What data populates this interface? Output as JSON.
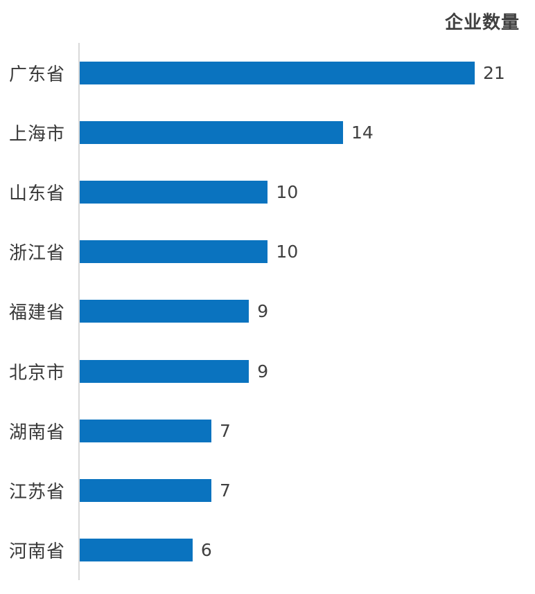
{
  "chart_data": {
    "type": "bar",
    "orientation": "horizontal",
    "title": "企业数量",
    "categories": [
      "广东省",
      "上海市",
      "山东省",
      "浙江省",
      "福建省",
      "北京市",
      "湖南省",
      "江苏省",
      "河南省"
    ],
    "values": [
      21,
      14,
      10,
      10,
      9,
      9,
      7,
      7,
      6
    ],
    "value_labels": [
      "21",
      "14",
      "10",
      "10",
      "9",
      "9",
      "7",
      "7",
      "6"
    ],
    "xlim": [
      0,
      21
    ],
    "grid": false,
    "legend_position": "none",
    "bar_color": "#0a73bf",
    "axis_line_color": "#d9d9d9",
    "category_label_color": "#383838",
    "value_label_color": "#404040",
    "title_color": "#404040",
    "background_color": "#ffffff"
  }
}
